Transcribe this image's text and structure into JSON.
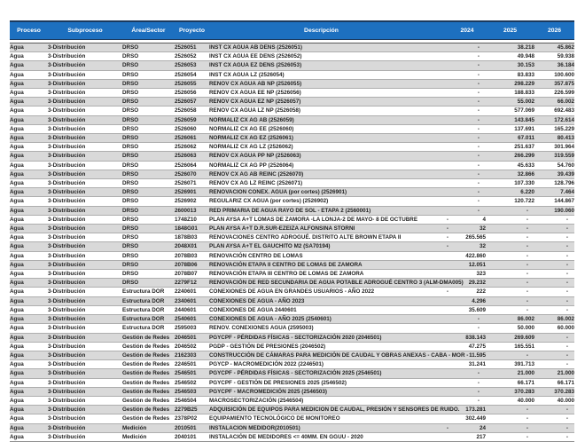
{
  "colors": {
    "header_bg": "#1d70c0",
    "header_border": "#1b3a5f",
    "header_text": "#ffffff",
    "stripe": "#d9d9d9",
    "row_border": "#aeaeae",
    "body_text": "#1f1f1f"
  },
  "table": {
    "columns": [
      {
        "key": "proceso",
        "label": "Proceso"
      },
      {
        "key": "subproceso",
        "label": "Subproceso"
      },
      {
        "key": "area",
        "label": "Área/Sector"
      },
      {
        "key": "proyecto",
        "label": "Proyecto"
      },
      {
        "key": "descripcion",
        "label": "Descripción"
      },
      {
        "key": "pre",
        "label": ""
      },
      {
        "key": "y2024",
        "label": "2024"
      },
      {
        "key": "y2025",
        "label": "2025"
      },
      {
        "key": "y2026",
        "label": "2026"
      }
    ],
    "rows": [
      [
        "Agua",
        "3-Distribución",
        "DRSO",
        "2526051",
        "INST CX AGUA AB DENS (2526051)",
        "",
        "-",
        "38.218",
        "45.862"
      ],
      [
        "Agua",
        "3-Distribución",
        "DRSO",
        "2526052",
        "INST CX AGUA EE DENS (2526052)",
        "",
        "-",
        "49.948",
        "59.938"
      ],
      [
        "Agua",
        "3-Distribución",
        "DRSO",
        "2526053",
        "INST CX AGUA EZ DENS (2526053)",
        "",
        "-",
        "30.153",
        "36.184"
      ],
      [
        "Agua",
        "3-Distribución",
        "DRSO",
        "2526054",
        "INST CX AGUA LZ (2526054)",
        "",
        "-",
        "83.833",
        "100.600"
      ],
      [
        "Agua",
        "3-Distribución",
        "DRSO",
        "2526055",
        "RENOV CX AGUA AB NP (2526055)",
        "",
        "-",
        "298.229",
        "357.875"
      ],
      [
        "Agua",
        "3-Distribución",
        "DRSO",
        "2526056",
        "RENOV CX AGUA EE NP (2526056)",
        "",
        "-",
        "188.833",
        "226.599"
      ],
      [
        "Agua",
        "3-Distribución",
        "DRSO",
        "2526057",
        "RENOV CX AGUA EZ NP (2526057)",
        "",
        "-",
        "55.002",
        "66.002"
      ],
      [
        "Agua",
        "3-Distribución",
        "DRSO",
        "2526058",
        "RENOV CX AGUA LZ NP (2526058)",
        "",
        "-",
        "577.069",
        "692.483"
      ],
      [
        "Agua",
        "3-Distribución",
        "DRSO",
        "2526059",
        "NORMALIZ CX AG AB (2526059)",
        "",
        "-",
        "143.845",
        "172.614"
      ],
      [
        "Agua",
        "3-Distribución",
        "DRSO",
        "2526060",
        "NORMALIZ CX AG EE (2526060)",
        "",
        "-",
        "137.691",
        "165.229"
      ],
      [
        "Agua",
        "3-Distribución",
        "DRSO",
        "2526061",
        "NORMALIZ CX AG EZ (2526061)",
        "",
        "-",
        "67.011",
        "80.413"
      ],
      [
        "Agua",
        "3-Distribución",
        "DRSO",
        "2526062",
        "NORMALIZ CX AG LZ (2526062)",
        "",
        "-",
        "251.637",
        "301.964"
      ],
      [
        "Agua",
        "3-Distribución",
        "DRSO",
        "2526063",
        "RENOV CX AGUA PP NP (2526063)",
        "",
        "-",
        "266.299",
        "319.559"
      ],
      [
        "Agua",
        "3-Distribución",
        "DRSO",
        "2526064",
        "NORMALIZ CX AG PP (2526064)",
        "",
        "-",
        "45.633",
        "54.760"
      ],
      [
        "Agua",
        "3-Distribución",
        "DRSO",
        "2526070",
        "RENOV CX AG AB REINC (2526070)",
        "",
        "-",
        "32.866",
        "39.439"
      ],
      [
        "Agua",
        "3-Distribución",
        "DRSO",
        "2526071",
        "RENOV CX AG LZ REINC (2526071)",
        "",
        "-",
        "107.330",
        "128.796"
      ],
      [
        "Agua",
        "3-Distribución",
        "DRSO",
        "2526901",
        "RENOVACION CONEX. AGUA (por cortes) (2526901)",
        "",
        "-",
        "6.220",
        "7.464"
      ],
      [
        "Agua",
        "3-Distribución",
        "DRSO",
        "2526902",
        "REGULARIZ CX AGUA (por cortes) (2526902)",
        "",
        "-",
        "120.722",
        "144.867"
      ],
      [
        "Agua",
        "3-Distribución",
        "DRSO",
        "2600013",
        "RED PRIMARIA DE AGUA RAYO DE SOL - ETAPA 2 (2560001)",
        "",
        "-",
        "-",
        "190.060"
      ],
      [
        "Agua",
        "3-Distribución",
        "DRSO",
        "1748Z10",
        "PLAN AYSA A+T LOMAS DE ZAMORA -LA LONJA-2 DE MAYO- 8 DE OCTUBRE",
        "-",
        "4",
        "-",
        "-"
      ],
      [
        "Agua",
        "3-Distribución",
        "DRSO",
        "1848G01",
        "PLAN AYSA A+T D.R.SUR-EZEIZA ALFONSINA STORNI",
        "-",
        "32",
        "-",
        "-"
      ],
      [
        "Agua",
        "3-Distribución",
        "DRSO",
        "1878B03",
        "RENOVACIONES CENTRO ADROGUÉ. DISTRITO ALTE BROWN ETAPA II",
        "-",
        "265.565",
        "-",
        "-"
      ],
      [
        "Agua",
        "3-Distribución",
        "DRSO",
        "2048X01",
        "PLAN AYSA A+T EL GAUCHITO M2 (SA70194)",
        "-",
        "32",
        "-",
        "-"
      ],
      [
        "Agua",
        "3-Distribución",
        "DRSO",
        "2078B03",
        "RENOVACIÓN CENTRO DE LOMAS",
        "",
        "422.860",
        "-",
        "-"
      ],
      [
        "Agua",
        "3-Distribución",
        "DRSO",
        "2078B06",
        "RENOVACIÓN ETAPA II CENTRO DE LOMAS DE ZAMORA",
        "",
        "12.051",
        "-",
        "-"
      ],
      [
        "Agua",
        "3-Distribución",
        "DRSO",
        "2078B07",
        "RENOVACIÓN ETAPA III CENTRO DE LOMAS DE ZAMORA",
        "",
        "323",
        "-",
        "-"
      ],
      [
        "Agua",
        "3-Distribución",
        "DRSO",
        "2279F12",
        "RENOVACIÓN DE RED SECUNDARIA DE AGUA POTABLE ADROGUÉ CENTRO 3 (ALM-DMA005)",
        "",
        "29.232",
        "-",
        "-"
      ],
      [
        "Agua",
        "3-Distribución",
        "Estructura DOR",
        "2240601",
        "CONEXIONES DE AGUA EN GRANDES USUARIOS - AÑO 2022",
        "-",
        "222",
        "-",
        "-"
      ],
      [
        "Agua",
        "3-Distribución",
        "Estructura DOR",
        "2340601",
        "CONEXIONES DE AGUA - AÑO 2023",
        "",
        "4.296",
        "-",
        "-"
      ],
      [
        "Agua",
        "3-Distribución",
        "Estructura DOR",
        "2440601",
        "CONEXIONES DE AGUA 2440601",
        "",
        "35.609",
        "-",
        "-"
      ],
      [
        "Agua",
        "3-Distribución",
        "Estructura DOR",
        "2540601",
        "CONEXIONES DE AGUA - AÑO 2025 (2540601)",
        "",
        "-",
        "86.002",
        "86.002"
      ],
      [
        "Agua",
        "3-Distribución",
        "Estructura DOR",
        "2595003",
        "RENOV. CONEXIONES AGUA (2595003)",
        "",
        "-",
        "50.000",
        "60.000"
      ],
      [
        "Agua",
        "3-Distribución",
        "Gestión de Redes",
        "2046501",
        "PGYCPF - PÉRDIDAS FÍSICAS - SECTORIZACIÓN 2020 (2046501)",
        "",
        "838.143",
        "269.609",
        "-"
      ],
      [
        "Agua",
        "3-Distribución",
        "Gestión de Redes",
        "2046502",
        "PGDP - GESTIÓN DE PRESIONES (2046502)",
        "",
        "47.275",
        "165.551",
        "-"
      ],
      [
        "Agua",
        "3-Distribución",
        "Gestión de Redes",
        "2162303",
        "CONSTRUCCIÓN DE CÁMARAS PARA MEDICIÓN DE CAUDAL Y OBRAS ANEXAS - CABA - MOR - I",
        "",
        "11.595",
        "-",
        "-"
      ],
      [
        "Agua",
        "3-Distribución",
        "Gestión de Redes",
        "2246501",
        "PGYCP - MACROMEDICIÓN 2022 (2246501)",
        "",
        "31.241",
        "391.713",
        "-"
      ],
      [
        "Agua",
        "3-Distribución",
        "Gestión de Redes",
        "2546501",
        "PGYCPF - PÉRDIDAS FÍSICAS - SECTORIZACIÓN 2025 (2546501)",
        "",
        "-",
        "21.000",
        "21.000"
      ],
      [
        "Agua",
        "3-Distribución",
        "Gestión de Redes",
        "2546502",
        "PGYCPF - GESTIÓN DE PRESIONES 2025 (2546502)",
        "",
        "-",
        "66.171",
        "66.171"
      ],
      [
        "Agua",
        "3-Distribución",
        "Gestión de Redes",
        "2546503",
        "PGYCPF - MACROMEDICIÓN 2025 (2546503)",
        "",
        "-",
        "370.283",
        "370.283"
      ],
      [
        "Agua",
        "3-Distribución",
        "Gestión de Redes",
        "2546504",
        "MACROSECTORIZACIÓN (2546504)",
        "",
        "-",
        "40.000",
        "40.000"
      ],
      [
        "Agua",
        "3-Distribución",
        "Gestión de Redes",
        "2279B25",
        "ADQUISICIÓN DE EQUIPOS PARA MEDICION DE CAUDAL, PRESIÓN Y SENSORES DE RUIDO.",
        "",
        "173.281",
        "-",
        "-"
      ],
      [
        "Agua",
        "3-Distribución",
        "Gestión de Redes",
        "2378P02",
        "EQUIPAMIENTO TECNOLÓGICO DE MONITOREO",
        "",
        "302.449",
        "-",
        "-"
      ],
      [
        "Agua",
        "3-Distribución",
        "Medición",
        "2010501",
        "INSTALACION MEDIDOR(2010501)",
        "-",
        "24",
        "-",
        "-"
      ],
      [
        "Agua",
        "3-Distribución",
        "Medición",
        "2040101",
        "INSTALACIÓN DE MEDIDORES <= 40MM. EN GGUU - 2020",
        "",
        "217",
        "-",
        "-"
      ]
    ]
  }
}
